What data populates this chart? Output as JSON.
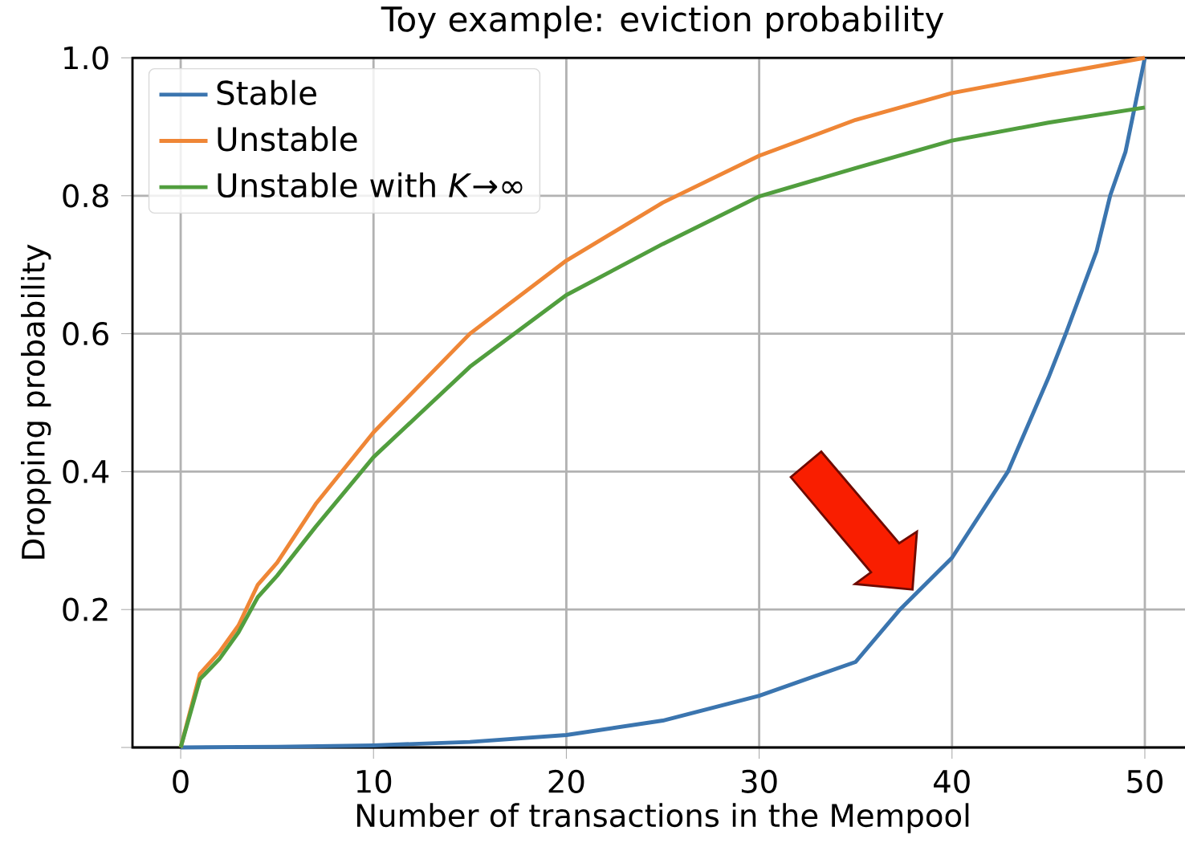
{
  "chart_data": {
    "type": "line",
    "title": "Toy example: eviction probability",
    "xlabel": "Number of transactions in the Mempool",
    "ylabel": "Dropping probability",
    "xlim": [
      -2.5,
      52.5
    ],
    "ylim": [
      0,
      1
    ],
    "xticks": [
      0,
      10,
      20,
      30,
      40,
      50
    ],
    "yticks": [
      {
        "value": 0,
        "label": null
      },
      {
        "value": 0.2,
        "label": "0.2"
      },
      {
        "value": 0.4,
        "label": "0.4"
      },
      {
        "value": 0.6,
        "label": "0.6"
      },
      {
        "value": 0.8,
        "label": "0.8"
      },
      {
        "value": 1.0,
        "label": "1.0"
      }
    ],
    "grid": true,
    "legend": "top left",
    "series": [
      {
        "name": "Stable",
        "color": "#3b75af",
        "x": [
          0,
          5,
          10,
          15,
          20,
          25,
          30,
          35,
          37.3,
          40,
          42.9,
          45,
          45.9,
          47.5,
          48.2,
          49,
          50
        ],
        "values": [
          0,
          0.001,
          0.003,
          0.008,
          0.018,
          0.039,
          0.075,
          0.124,
          0.2,
          0.275,
          0.4,
          0.536,
          0.6,
          0.72,
          0.8,
          0.864,
          1.0
        ]
      },
      {
        "name": "Unstable",
        "color": "#ef8636",
        "x": [
          0,
          1,
          2,
          3,
          4,
          5,
          7,
          10,
          15,
          20,
          25,
          30,
          35,
          40,
          45,
          50
        ],
        "values": [
          0,
          0.107,
          0.138,
          0.177,
          0.236,
          0.268,
          0.353,
          0.457,
          0.6,
          0.706,
          0.79,
          0.858,
          0.91,
          0.949,
          0.975,
          1.0
        ]
      },
      {
        "name": "Unstable with *K*→∞",
        "color": "#519e3e",
        "x": [
          0,
          1,
          2,
          3,
          4,
          5,
          7,
          10,
          15,
          20,
          25,
          30,
          35,
          40,
          45,
          50
        ],
        "values": [
          0,
          0.099,
          0.128,
          0.167,
          0.218,
          0.249,
          0.32,
          0.421,
          0.552,
          0.656,
          0.73,
          0.799,
          0.84,
          0.88,
          0.906,
          0.928
        ]
      }
    ]
  }
}
